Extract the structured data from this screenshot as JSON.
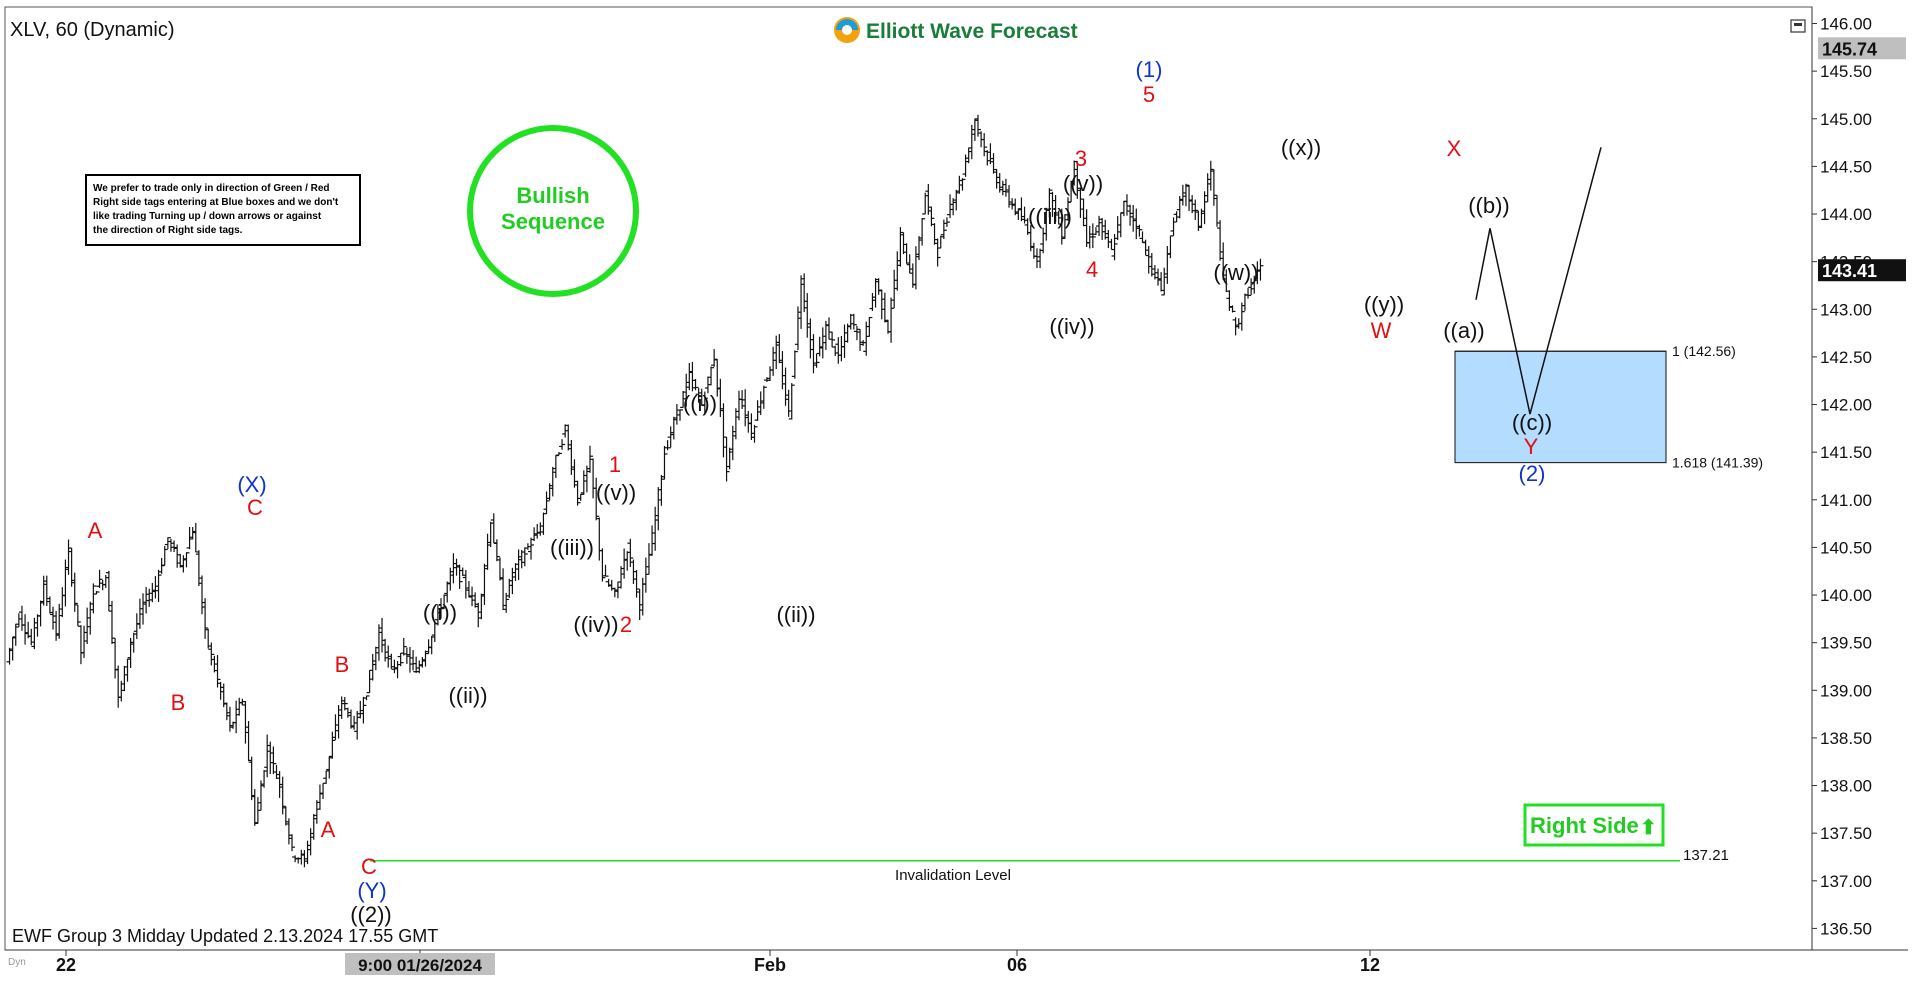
{
  "header": {
    "symbol_title": "XLV, 60 (Dynamic)",
    "brand": "Elliott Wave Forecast",
    "footer": "EWF Group 3 Midday Updated 2.13.2024 17.55 GMT",
    "corner_tag": "Dyn"
  },
  "notice_text": [
    "We prefer to trade only in direction of Green / Red",
    "Right side tags entering at Blue boxes and we don't",
    "like trading Turning up / down arrows or against",
    "the direction of Right side tags."
  ],
  "badge": {
    "line1": "Bullish",
    "line2": "Sequence",
    "color": "#22e022"
  },
  "right_side_tag": {
    "label": "Right Side",
    "arrow": "⬆",
    "color": "#22e022"
  },
  "chart_data": {
    "type": "ohlc",
    "y_axis": {
      "min": 136.2,
      "max": 146.1,
      "ticks": [
        136.5,
        137.0,
        137.5,
        138.0,
        138.5,
        139.0,
        139.5,
        140.0,
        140.5,
        141.0,
        141.5,
        142.0,
        142.5,
        143.0,
        143.5,
        144.0,
        144.5,
        145.0,
        145.5,
        146.0
      ],
      "tick_labels": [
        "136.50",
        "137.00",
        "137.50",
        "138.00",
        "138.50",
        "139.00",
        "139.50",
        "140.00",
        "140.50",
        "141.00",
        "141.50",
        "142.00",
        "142.50",
        "143.00",
        "143.50",
        "144.00",
        "144.50",
        "145.00",
        "145.50",
        "146.00"
      ],
      "price_markers": [
        {
          "label": "145.74",
          "value": 145.74,
          "style": "gray"
        },
        {
          "label": "143.41",
          "value": 143.41,
          "style": "dark"
        }
      ]
    },
    "x_axis": {
      "labels": [
        "22",
        "9:00 01/26/2024",
        "Feb",
        "06",
        "12"
      ],
      "highlighted": "9:00 01/26/2024"
    },
    "ohlc_path": [
      139.3,
      139.8,
      139.5,
      140.1,
      139.6,
      140.45,
      139.4,
      140.05,
      140.2,
      138.9,
      139.5,
      139.9,
      140.1,
      140.6,
      140.3,
      140.7,
      139.6,
      139.1,
      138.6,
      138.9,
      137.6,
      138.4,
      138.0,
      137.3,
      137.21,
      137.8,
      138.3,
      138.9,
      138.6,
      139.0,
      139.6,
      139.2,
      139.4,
      139.2,
      139.5,
      139.9,
      140.3,
      140.1,
      139.8,
      140.8,
      139.9,
      140.3,
      140.5,
      140.7,
      141.3,
      141.75,
      141.0,
      141.4,
      140.2,
      140.0,
      140.5,
      139.9,
      140.6,
      141.5,
      141.9,
      142.3,
      142.0,
      142.5,
      141.3,
      142.1,
      141.7,
      142.2,
      142.6,
      141.9,
      143.3,
      142.4,
      142.8,
      142.5,
      142.9,
      142.6,
      143.3,
      142.8,
      143.75,
      143.3,
      144.2,
      143.6,
      144.1,
      144.4,
      145.0,
      144.6,
      144.3,
      144.1,
      143.9,
      143.5,
      144.2,
      143.8,
      144.5,
      143.7,
      143.9,
      143.6,
      144.1,
      143.9,
      143.5,
      143.2,
      143.95,
      144.25,
      143.9,
      144.45,
      143.3,
      142.8,
      143.2,
      143.41
    ],
    "wave_labels": [
      {
        "text": "A",
        "color": "red"
      },
      {
        "text": "B",
        "color": "red"
      },
      {
        "text": "(X)",
        "color": "blue"
      },
      {
        "text": "C",
        "color": "red"
      },
      {
        "text": "B",
        "color": "red"
      },
      {
        "text": "A",
        "color": "red"
      },
      {
        "text": "C",
        "color": "red"
      },
      {
        "text": "(Y)",
        "color": "blue"
      },
      {
        "text": "((2))",
        "color": "black"
      },
      {
        "text": "((i))",
        "color": "black"
      },
      {
        "text": "((ii))",
        "color": "black"
      },
      {
        "text": "((iii))",
        "color": "black"
      },
      {
        "text": "((iv))",
        "color": "black"
      },
      {
        "text": "2",
        "color": "red"
      },
      {
        "text": "1",
        "color": "red"
      },
      {
        "text": "((v))",
        "color": "black"
      },
      {
        "text": "((i))",
        "color": "black"
      },
      {
        "text": "((ii))",
        "color": "black"
      },
      {
        "text": "3",
        "color": "red"
      },
      {
        "text": "((v))",
        "color": "black"
      },
      {
        "text": "((iii))",
        "color": "black"
      },
      {
        "text": "4",
        "color": "red"
      },
      {
        "text": "((iv))",
        "color": "black"
      },
      {
        "text": "(1)",
        "color": "blue"
      },
      {
        "text": "5",
        "color": "red"
      },
      {
        "text": "((w))",
        "color": "black"
      },
      {
        "text": "((x))",
        "color": "black"
      },
      {
        "text": "((y))",
        "color": "black"
      },
      {
        "text": "W",
        "color": "red"
      },
      {
        "text": "X",
        "color": "red"
      },
      {
        "text": "((b))",
        "color": "black"
      },
      {
        "text": "((a))",
        "color": "black"
      },
      {
        "text": "((c))",
        "color": "black"
      },
      {
        "text": "Y",
        "color": "red"
      },
      {
        "text": "(2)",
        "color": "blue"
      }
    ],
    "projection": {
      "points": [
        143.1,
        143.85,
        141.9,
        144.7
      ]
    },
    "blue_box": {
      "top": 142.56,
      "bottom": 141.39,
      "color": "#b3dcff",
      "top_label": "1 (142.56)",
      "bottom_label": "1.618 (141.39)"
    },
    "invalidation": {
      "value": 137.21,
      "label": "Invalidation Level",
      "value_label": "137.21",
      "color": "#22e022"
    }
  }
}
